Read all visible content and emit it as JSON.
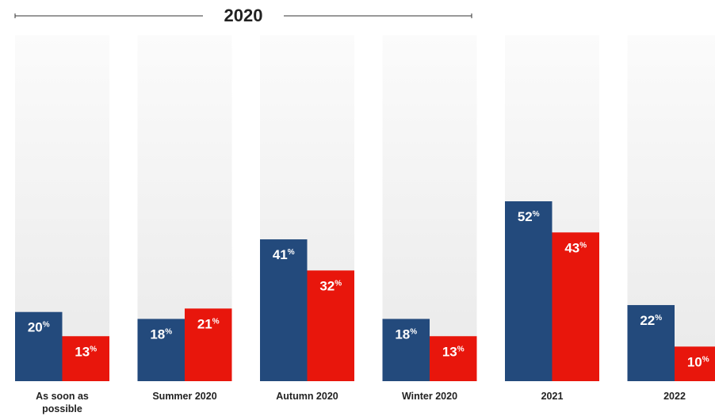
{
  "chart_data": {
    "type": "bar",
    "annotation": "2020",
    "categories": [
      "As soon as possible",
      "Summer 2020",
      "Autumn 2020",
      "Winter 2020",
      "2021",
      "2022"
    ],
    "series": [
      {
        "color": "#234a7c",
        "values": [
          20,
          18,
          41,
          18,
          52,
          22
        ],
        "value_labels": [
          "20%",
          "18%",
          "41%",
          "18%",
          "52%",
          "22%"
        ]
      },
      {
        "color": "#e8160c",
        "values": [
          13,
          21,
          32,
          13,
          43,
          10
        ],
        "value_labels": [
          "13%",
          "21%",
          "32%",
          "13%",
          "43%",
          "10%"
        ]
      }
    ],
    "ylim": [
      0,
      100
    ]
  }
}
